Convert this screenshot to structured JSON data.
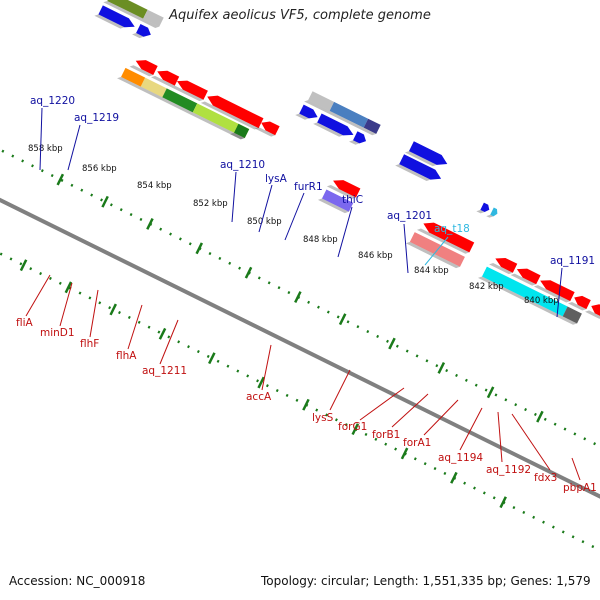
{
  "title": "Aquifex aeolicus VF5, complete genome",
  "accession": "Accession: NC_000918",
  "topology": "Topology: circular; Length: 1,551,335 bp; Genes: 1,579",
  "colors": {
    "backbone": "#808080",
    "scale": "#1a7a1a",
    "top_label": "#1010a0",
    "top_label_trna": "#30b8e0",
    "bottom_label": "#c01010"
  },
  "scale_labels": [
    "858 kbp",
    "856 kbp",
    "854 kbp",
    "852 kbp",
    "850 kbp",
    "848 kbp",
    "846 kbp",
    "844 kbp",
    "842 kbp",
    "840 kbp"
  ],
  "top_gene_labels": [
    "aq_1220",
    "aq_1219",
    "aq_1210",
    "lysA",
    "furR1",
    "thiC",
    "aq_1201",
    "aq_t18",
    "aq_1191"
  ],
  "bottom_gene_labels": [
    "fliA",
    "minD1",
    "flhF",
    "flhA",
    "aq_1211",
    "accA",
    "lysS",
    "forG1",
    "forB1",
    "forA1",
    "aq_1194",
    "aq_1192",
    "fdx3",
    "pbpA1"
  ]
}
